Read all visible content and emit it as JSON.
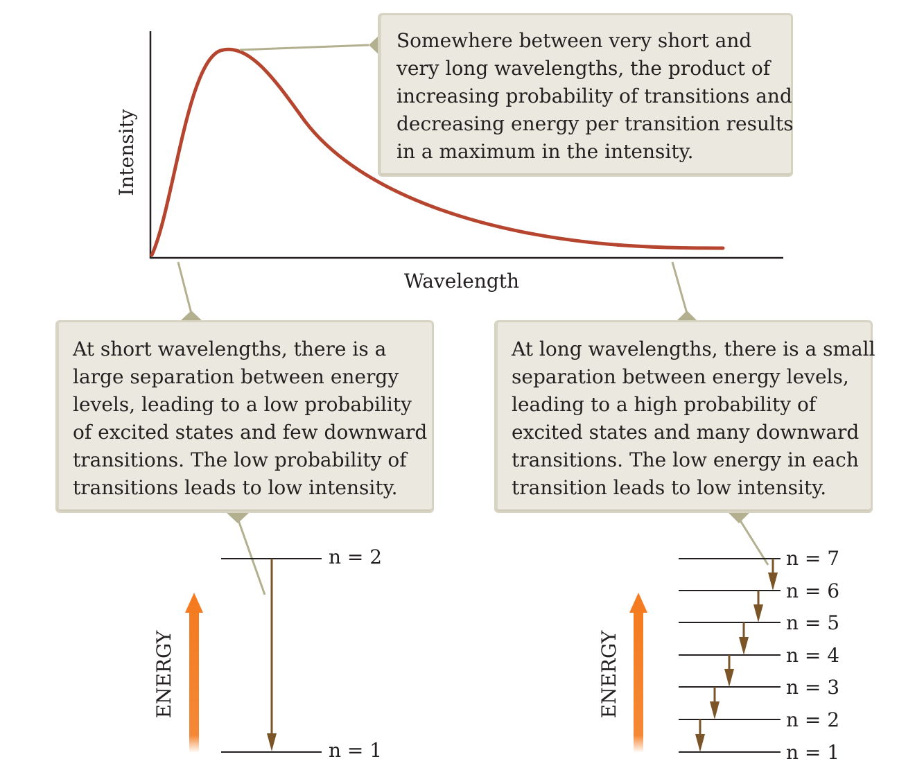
{
  "graph": {
    "y_axis_label": "Intensity",
    "x_axis_label": "Wavelength",
    "curve_color": "#b5452e"
  },
  "callouts": {
    "peak": {
      "lines": [
        "Somewhere between very short and",
        "very long wavelengths, the product of",
        "increasing probability of transitions and",
        "decreasing energy per transition results",
        "in a maximum in the intensity."
      ]
    },
    "short": {
      "lines": [
        "At short wavelengths, there is a",
        "large separation between energy",
        "levels, leading to a low probability",
        "of excited states and few downward",
        "transitions.  The low probability of",
        "transitions leads to low intensity."
      ]
    },
    "long": {
      "lines": [
        "At long wavelengths, there is a small",
        "separation between energy levels,",
        "leading to a high probability of",
        "excited states and many downward",
        "transitions. The low energy in each",
        "transition leads to low intensity."
      ]
    }
  },
  "left_diagram": {
    "energy_label": "ENERGY",
    "levels": [
      "n = 2",
      "n = 1"
    ]
  },
  "right_diagram": {
    "energy_label": "ENERGY",
    "levels": [
      "n = 7",
      "n = 6",
      "n = 5",
      "n = 4",
      "n = 3",
      "n = 2",
      "n = 1"
    ]
  },
  "colors": {
    "callout_bg": "#ebe9df",
    "callout_border": "#d6d3c2",
    "leader": "#b3b08f",
    "transition_arrow": "#7b5528",
    "energy_arrow": "#f47b20"
  }
}
